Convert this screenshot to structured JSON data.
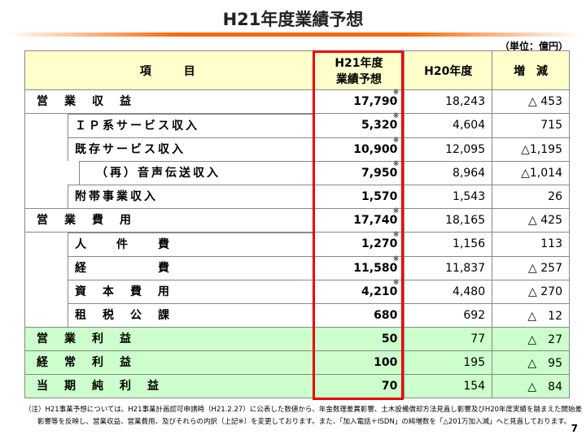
{
  "header": {
    "title": "H21年度業績予想",
    "unit": "（単位：億円）"
  },
  "table": {
    "columns": [
      "項　　目",
      [
        "H21年度",
        "業績予想"
      ],
      "H20年度",
      "増　減"
    ],
    "rows": [
      {
        "item": "営　業　収　益",
        "h21": "17,790",
        "mark": "※",
        "h20": "18,243",
        "diff": "△ 453"
      },
      {
        "item": "ＩＰ系サービス収入",
        "h21": "5,320",
        "mark": "※",
        "h20": "4,604",
        "diff": "715"
      },
      {
        "item": "既存サービス収入",
        "h21": "10,900",
        "mark": "※",
        "h20": "12,095",
        "diff": "△1,195"
      },
      {
        "item": "（再）音声伝送収入",
        "h21": "7,950",
        "mark": "※",
        "h20": "8,964",
        "diff": "△1,014"
      },
      {
        "item": "附帯事業収入",
        "h21": "1,570",
        "h20": "1,543",
        "diff": "26"
      },
      {
        "item": "営　業　費　用",
        "h21": "17,740",
        "mark": "※",
        "h20": "18,165",
        "diff": "△ 425"
      },
      {
        "item": "人　　件　　費",
        "h21": "1,270",
        "mark": "※",
        "h20": "1,156",
        "diff": "113"
      },
      {
        "item": "経　　　　　費",
        "h21": "11,580",
        "mark": "※",
        "h20": "11,837",
        "diff": "△ 257"
      },
      {
        "item": "資　本　費　用",
        "h21": "4,210",
        "mark": "※",
        "h20": "4,480",
        "diff": "△ 270"
      },
      {
        "item": "租　税　公　課",
        "h21": "680",
        "h20": "692",
        "diff": "△　12"
      },
      {
        "item": "営　業　利　益",
        "h21": "50",
        "h20": "77",
        "diff": "△　27"
      },
      {
        "item": "経　常　利　益",
        "h21": "100",
        "h20": "195",
        "diff": "△　95"
      },
      {
        "item": "当　期　純　利　益",
        "h21": "70",
        "h20": "154",
        "diff": "△　84"
      }
    ]
  },
  "footnote": "（注）H21事業予想については、H21事業計画認可申請時（H21.2.27）に公表した数値から、年金数理差異影響、土木設備償却方法見直し影響及びH20年度実績を踏まえた開始差影響等を反映し、営業収益、営業費用、及びそれらの内訳（上記※）を変更しております。また、「加入電話＋ISDN」の純増数を「△201万加入減」へと見直しております。",
  "page_number": "7"
}
